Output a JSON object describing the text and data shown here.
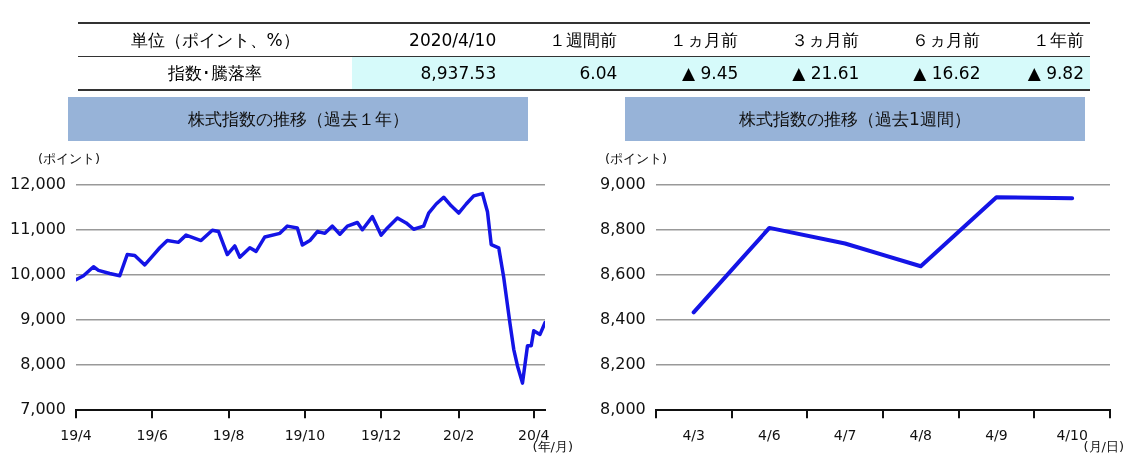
{
  "chart_data": [
    {
      "type": "other",
      "annotations": [
        "単位（ポイント、%）",
        "2020/4/10",
        "１週間前",
        "１ヵ月前",
        "３ヵ月前",
        "６ヵ月前",
        "１年前",
        "指数･騰落率",
        "8,937.53",
        "6.04",
        "▲ 9.45",
        "▲ 21.61",
        "▲ 16.62",
        "▲ 9.82"
      ]
    },
    {
      "type": "line",
      "title": "株式指数の推移（過去１年）",
      "xlabel": "(年/月)",
      "ylabel": "(ポイント)",
      "grid": "y",
      "marker": "none",
      "x": [
        "2019-04-01",
        "2019-04-07",
        "2019-04-15",
        "2019-04-19",
        "2019-04-28",
        "2019-05-06",
        "2019-05-12",
        "2019-05-18",
        "2019-05-26",
        "2019-06-01",
        "2019-06-07",
        "2019-06-13",
        "2019-06-22",
        "2019-06-28",
        "2019-07-10",
        "2019-07-19",
        "2019-07-24",
        "2019-07-31",
        "2019-08-06",
        "2019-08-10",
        "2019-08-18",
        "2019-08-23",
        "2019-08-30",
        "2019-09-11",
        "2019-09-17",
        "2019-09-25",
        "2019-09-29",
        "2019-10-05",
        "2019-10-11",
        "2019-10-17",
        "2019-10-23",
        "2019-10-29",
        "2019-11-04",
        "2019-11-12",
        "2019-11-16",
        "2019-11-24",
        "2019-12-01",
        "2019-12-06",
        "2019-12-14",
        "2019-12-21",
        "2019-12-27",
        "2020-01-04",
        "2020-01-08",
        "2020-01-14",
        "2020-01-20",
        "2020-01-26",
        "2020-02-01",
        "2020-02-07",
        "2020-02-13",
        "2020-02-20",
        "2020-02-24",
        "2020-02-27",
        "2020-03-04",
        "2020-03-08",
        "2020-03-13",
        "2020-03-16",
        "2020-03-19",
        "2020-03-23",
        "2020-03-27",
        "2020-03-30",
        "2020-04-01",
        "2020-04-06",
        "2020-04-10"
      ],
      "series": [
        {
          "color": "#1414e6",
          "values": [
            9890,
            9980,
            10180,
            10100,
            10030,
            9980,
            10450,
            10430,
            10220,
            10410,
            10600,
            10760,
            10720,
            10880,
            10760,
            10990,
            10960,
            10450,
            10640,
            10390,
            10600,
            10520,
            10840,
            10920,
            11080,
            11040,
            10660,
            10760,
            10960,
            10920,
            11080,
            10900,
            11080,
            11160,
            11000,
            11290,
            10880,
            11040,
            11260,
            11150,
            11010,
            11080,
            11370,
            11570,
            11720,
            11530,
            11370,
            11570,
            11750,
            11800,
            11400,
            10670,
            10600,
            9940,
            8920,
            8350,
            7980,
            7600,
            8430,
            8430,
            8760,
            8680,
            8940
          ]
        }
      ],
      "xlim": [
        "2019-04-01",
        "2020-04-10"
      ],
      "xticks": [
        {
          "value": "2019-04-01",
          "label": "19/4"
        },
        {
          "value": "2019-06-01",
          "label": "19/6"
        },
        {
          "value": "2019-08-01",
          "label": "19/8"
        },
        {
          "value": "2019-10-01",
          "label": "19/10"
        },
        {
          "value": "2019-12-01",
          "label": "19/12"
        },
        {
          "value": "2020-02-01",
          "label": "20/2"
        },
        {
          "value": "2020-04-01",
          "label": "20/4"
        }
      ],
      "ylim": [
        7000,
        12000
      ],
      "yticks": [
        {
          "value": 7000,
          "label": "7,000"
        },
        {
          "value": 8000,
          "label": "8,000"
        },
        {
          "value": 9000,
          "label": "9,000"
        },
        {
          "value": 10000,
          "label": "10,000"
        },
        {
          "value": 11000,
          "label": "11,000"
        },
        {
          "value": 12000,
          "label": "12,000"
        }
      ]
    },
    {
      "type": "line",
      "title": "株式指数の推移（過去1週間）",
      "xlabel": "(月/日)",
      "ylabel": "(ポイント)",
      "grid": "y",
      "marker": "none",
      "categories": [
        "4/3",
        "4/6",
        "4/7",
        "4/8",
        "4/9",
        "4/10"
      ],
      "series": [
        {
          "color": "#1414e6",
          "values": [
            8434,
            8808,
            8739,
            8638,
            8944,
            8940
          ]
        }
      ],
      "ylim": [
        8000,
        9000
      ],
      "yticks": [
        {
          "value": 8000,
          "label": "8,000"
        },
        {
          "value": 8200,
          "label": "8,200"
        },
        {
          "value": 8400,
          "label": "8,400"
        },
        {
          "value": 8600,
          "label": "8,600"
        },
        {
          "value": 8800,
          "label": "8,800"
        },
        {
          "value": 9000,
          "label": "9,000"
        }
      ]
    }
  ]
}
